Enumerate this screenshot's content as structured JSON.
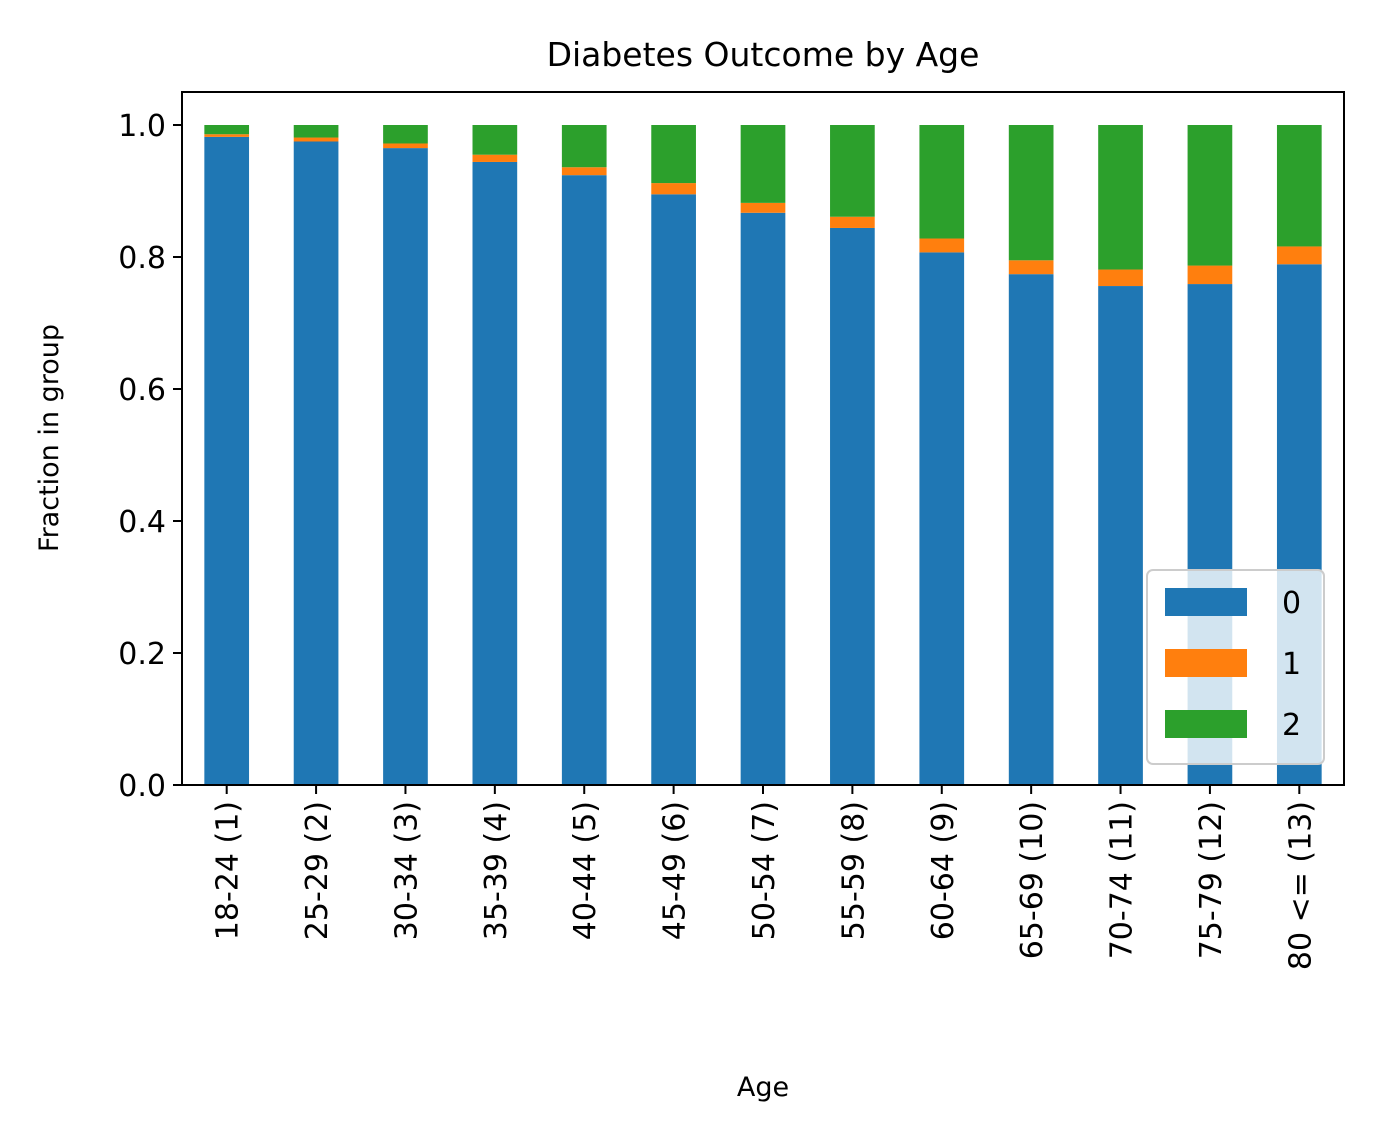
{
  "chart_data": {
    "type": "bar",
    "stacked": true,
    "title": "Diabetes Outcome by Age",
    "xlabel": "Age",
    "ylabel": "Fraction in group",
    "ylim": [
      0,
      1.05
    ],
    "yticks": [
      "0.0",
      "0.2",
      "0.4",
      "0.6",
      "0.8",
      "1.0"
    ],
    "grid": false,
    "legend_position": "bottom-right",
    "categories": [
      "18-24 (1)",
      "25-29 (2)",
      "30-34 (3)",
      "35-39 (4)",
      "40-44 (5)",
      "45-49 (6)",
      "50-54 (7)",
      "55-59 (8)",
      "60-64 (9)",
      "65-69 (10)",
      "70-74 (11)",
      "75-79 (12)",
      "80 <= (13)"
    ],
    "series": [
      {
        "name": "0",
        "color": "#1f77b4",
        "values": [
          0.982,
          0.975,
          0.965,
          0.944,
          0.924,
          0.895,
          0.867,
          0.844,
          0.807,
          0.774,
          0.756,
          0.759,
          0.789
        ]
      },
      {
        "name": "1",
        "color": "#ff7f0e",
        "values": [
          0.004,
          0.006,
          0.007,
          0.011,
          0.012,
          0.017,
          0.015,
          0.017,
          0.021,
          0.021,
          0.025,
          0.028,
          0.027
        ]
      },
      {
        "name": "2",
        "color": "#2ca02c",
        "values": [
          0.014,
          0.019,
          0.028,
          0.045,
          0.064,
          0.088,
          0.118,
          0.139,
          0.172,
          0.205,
          0.219,
          0.213,
          0.184
        ]
      }
    ]
  }
}
